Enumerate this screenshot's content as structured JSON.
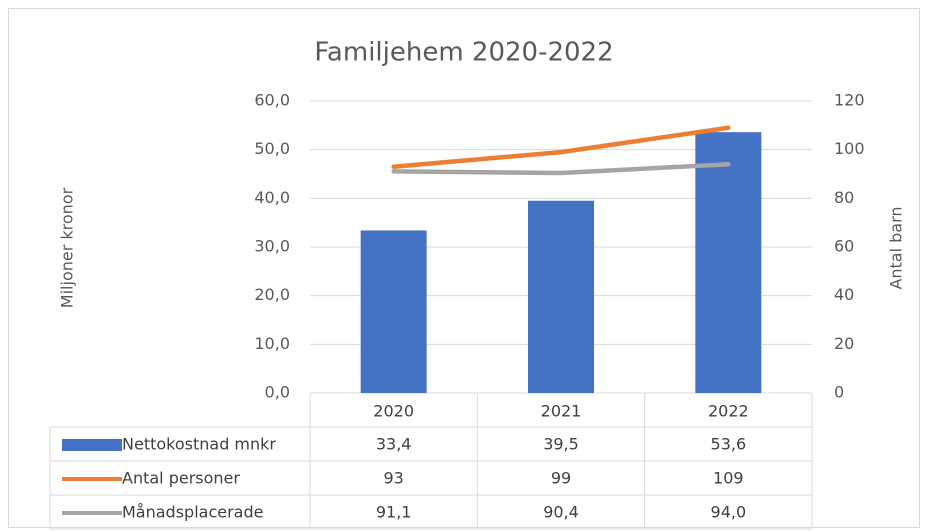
{
  "chart_data": {
    "type": "bar-line-table",
    "title": "Familjehem 2020-2022",
    "y_label": "Miljoner kronor",
    "y2_label": "Antal barn",
    "categories": [
      "2020",
      "2021",
      "2022"
    ],
    "series": [
      {
        "name": "Nettokostnad mnkr",
        "type": "bar",
        "color": "#4472c4",
        "values": [
          33.4,
          39.5,
          53.6
        ],
        "value_labels": [
          "33,4",
          "39,5",
          "53,6"
        ]
      },
      {
        "name": "Antal personer",
        "type": "line",
        "axis": "y2",
        "color": "#ed7d31",
        "values": [
          93,
          99,
          109
        ]
      },
      {
        "name": "Månadsplacerade",
        "type": "line",
        "axis": "y2",
        "color": "#a5a5a5",
        "values": [
          91.1,
          90.4,
          94.0
        ],
        "value_labels": [
          "91,1",
          "90,4",
          "94,0"
        ]
      }
    ],
    "ylim": [
      0,
      60
    ],
    "yticks": [
      {
        "value": 0,
        "label": "0,0"
      },
      {
        "value": 10,
        "label": "10,0"
      },
      {
        "value": 20,
        "label": "20,0"
      },
      {
        "value": 30,
        "label": "30,0"
      },
      {
        "value": 40,
        "label": "40,0"
      },
      {
        "value": 50,
        "label": "50,0"
      },
      {
        "value": 60,
        "label": "60,0"
      }
    ],
    "y2lim": [
      0,
      120
    ],
    "y2ticks": [
      0,
      20,
      40,
      60,
      80,
      100,
      120
    ],
    "grid": true
  }
}
